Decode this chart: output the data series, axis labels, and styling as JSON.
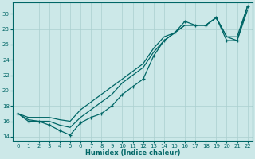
{
  "xlabel": "Humidex (Indice chaleur)",
  "background_color": "#cce8e8",
  "line_color": "#006666",
  "grid_color": "#aacfcf",
  "xlim": [
    -0.5,
    22.5
  ],
  "ylim": [
    13.5,
    31.5
  ],
  "yticks": [
    14,
    16,
    18,
    20,
    22,
    24,
    26,
    28,
    30
  ],
  "xticks": [
    0,
    1,
    2,
    3,
    4,
    5,
    6,
    7,
    8,
    9,
    10,
    11,
    12,
    13,
    14,
    15,
    16,
    17,
    18,
    19,
    20,
    21,
    22
  ],
  "series": [
    {
      "x": [
        0,
        1,
        2,
        3,
        4,
        5,
        6,
        7,
        8,
        9,
        10,
        11,
        12,
        13,
        14,
        15,
        16,
        17,
        18,
        19,
        20,
        21,
        22
      ],
      "y": [
        17.0,
        16.0,
        16.0,
        15.5,
        14.8,
        14.2,
        15.8,
        16.5,
        17.0,
        18.0,
        19.5,
        20.5,
        21.5,
        24.5,
        26.5,
        27.5,
        29.0,
        28.5,
        28.5,
        29.5,
        26.5,
        26.5,
        31.0
      ],
      "marker": true
    },
    {
      "x": [
        0,
        1,
        2,
        3,
        4,
        5,
        6,
        7,
        8,
        9,
        10,
        11,
        12,
        13,
        14,
        15,
        16,
        17,
        18,
        19,
        20,
        21,
        22
      ],
      "y": [
        17.0,
        16.2,
        16.0,
        16.0,
        15.5,
        15.2,
        16.5,
        17.5,
        18.5,
        19.5,
        21.0,
        22.0,
        23.0,
        25.0,
        26.5,
        27.5,
        28.5,
        28.5,
        28.5,
        29.5,
        27.0,
        27.0,
        31.0
      ],
      "marker": false
    },
    {
      "x": [
        0,
        1,
        2,
        3,
        4,
        5,
        6,
        7,
        8,
        9,
        10,
        11,
        12,
        13,
        14,
        15,
        16,
        17,
        18,
        19,
        20,
        21,
        22
      ],
      "y": [
        17.0,
        16.5,
        16.5,
        16.5,
        16.2,
        16.0,
        17.5,
        18.5,
        19.5,
        20.5,
        21.5,
        22.5,
        23.5,
        25.5,
        27.0,
        27.5,
        28.5,
        28.5,
        28.5,
        29.5,
        27.0,
        26.5,
        30.5
      ],
      "marker": false
    }
  ]
}
